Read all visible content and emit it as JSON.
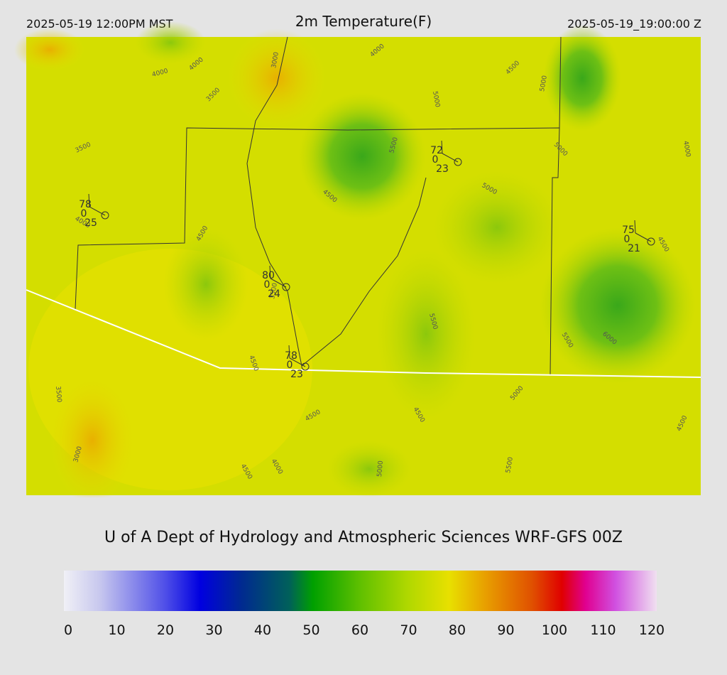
{
  "header": {
    "left": "2025-05-19 12:00PM MST",
    "title": "2m Temperature(F)",
    "right": "2025-05-19_19:00:00 Z"
  },
  "map": {
    "contour_labels": [
      "4000",
      "4000",
      "3000",
      "3500",
      "3500",
      "4000",
      "5000",
      "4500",
      "5000",
      "5000",
      "4000",
      "5500",
      "4500",
      "5000",
      "4500",
      "4000",
      "4500",
      "3500",
      "5500",
      "5500",
      "6000",
      "4500",
      "3500",
      "5000",
      "4500",
      "4500",
      "3000",
      "4500",
      "4000",
      "5000",
      "5500",
      "4500"
    ],
    "stations": [
      {
        "temperature": "78",
        "cloud": "0",
        "dewpoint": "25"
      },
      {
        "temperature": "72",
        "cloud": "0",
        "dewpoint": "23"
      },
      {
        "temperature": "75",
        "cloud": "0",
        "dewpoint": "21"
      },
      {
        "temperature": "80",
        "cloud": "0",
        "dewpoint": "24"
      },
      {
        "temperature": "78",
        "cloud": "0",
        "dewpoint": "23"
      }
    ]
  },
  "credit": "U of A Dept of Hydrology and Atmospheric Sciences WRF-GFS 00Z",
  "colorbar": {
    "ticks": [
      "0",
      "10",
      "20",
      "30",
      "40",
      "50",
      "60",
      "70",
      "80",
      "90",
      "100",
      "110",
      "120"
    ]
  }
}
